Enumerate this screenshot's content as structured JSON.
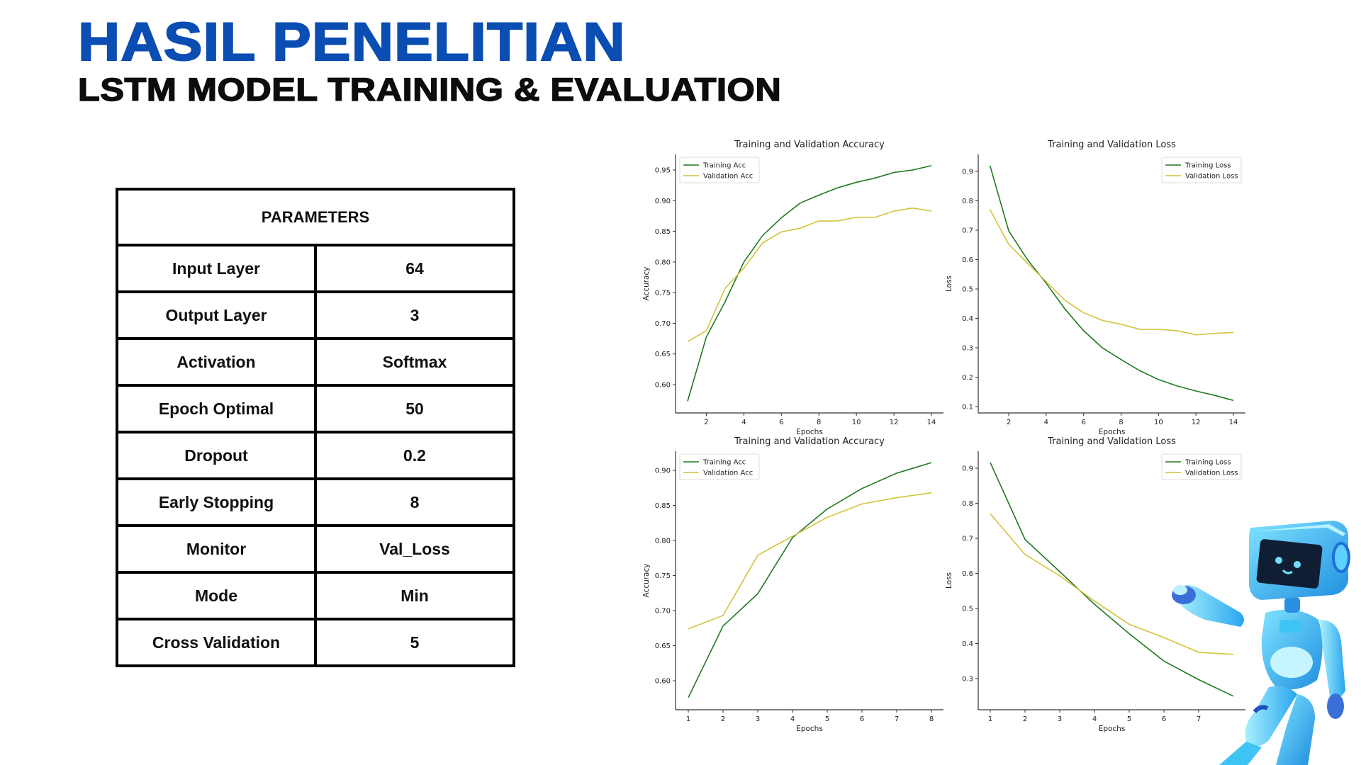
{
  "header": {
    "title": "HASIL PENELITIAN",
    "subtitle": "LSTM MODEL TRAINING & EVALUATION"
  },
  "table": {
    "header": "PARAMETERS",
    "rows": [
      {
        "key": "Input Layer",
        "value": "64"
      },
      {
        "key": "Output Layer",
        "value": "3"
      },
      {
        "key": "Activation",
        "value": "Softmax"
      },
      {
        "key": "Epoch Optimal",
        "value": "50"
      },
      {
        "key": "Dropout",
        "value": "0.2"
      },
      {
        "key": "Early Stopping",
        "value": "8"
      },
      {
        "key": "Monitor",
        "value": "Val_Loss"
      },
      {
        "key": "Mode",
        "value": "Min"
      },
      {
        "key": "Cross Validation",
        "value": "5"
      }
    ]
  },
  "colors": {
    "title_blue": "#0a4db3",
    "training": "#1f7a1f",
    "validation": "#d4c23a",
    "robot_blue": "#3ab8f0"
  },
  "illustration": "robot-icon",
  "chart_data": [
    {
      "type": "line",
      "title": "Training and Validation Accuracy",
      "xlabel": "Epochs",
      "ylabel": "Accuracy",
      "x": [
        1,
        2,
        3,
        4,
        5,
        6,
        7,
        8,
        9,
        10,
        11,
        12,
        13,
        14
      ],
      "xticks": [
        2,
        4,
        6,
        8,
        10,
        12,
        14
      ],
      "xtick_labels": [
        "2",
        "4",
        "6",
        "8",
        "10",
        "12",
        "14"
      ],
      "yticks": [
        0.6,
        0.65,
        0.7,
        0.75,
        0.8,
        0.85,
        0.9,
        0.95
      ],
      "ytick_labels": [
        "0.60",
        "0.65",
        "0.70",
        "0.75",
        "0.80",
        "0.85",
        "0.90",
        "0.95"
      ],
      "legend": "top-left",
      "series": [
        {
          "name": "Training Acc",
          "color": "#1f7a1f",
          "values": [
            0.573,
            0.678,
            0.735,
            0.8,
            0.843,
            0.872,
            0.896,
            0.909,
            0.921,
            0.93,
            0.937,
            0.946,
            0.95,
            0.957
          ]
        },
        {
          "name": "Validation Acc",
          "color": "#d4c23a",
          "values": [
            0.67,
            0.688,
            0.757,
            0.79,
            0.831,
            0.849,
            0.855,
            0.867,
            0.867,
            0.873,
            0.873,
            0.883,
            0.888,
            0.883
          ]
        }
      ]
    },
    {
      "type": "line",
      "title": "Training and Validation Loss",
      "xlabel": "Epochs",
      "ylabel": "Loss",
      "x": [
        1,
        2,
        3,
        4,
        5,
        6,
        7,
        8,
        9,
        10,
        11,
        12,
        13,
        14
      ],
      "xticks": [
        2,
        4,
        6,
        8,
        10,
        12,
        14
      ],
      "xtick_labels": [
        "2",
        "4",
        "6",
        "8",
        "10",
        "12",
        "14"
      ],
      "yticks": [
        0.1,
        0.2,
        0.3,
        0.4,
        0.5,
        0.6,
        0.7,
        0.8,
        0.9
      ],
      "ytick_labels": [
        "0.1",
        "0.2",
        "0.3",
        "0.4",
        "0.5",
        "0.6",
        "0.7",
        "0.8",
        "0.9"
      ],
      "legend": "top-right",
      "series": [
        {
          "name": "Training Loss",
          "color": "#1f7a1f",
          "values": [
            0.92,
            0.698,
            0.6,
            0.52,
            0.432,
            0.358,
            0.3,
            0.26,
            0.222,
            0.192,
            0.17,
            0.153,
            0.138,
            0.121
          ]
        },
        {
          "name": "Validation Loss",
          "color": "#d4c23a",
          "values": [
            0.77,
            0.652,
            0.588,
            0.525,
            0.462,
            0.419,
            0.393,
            0.38,
            0.363,
            0.363,
            0.358,
            0.344,
            0.349,
            0.352
          ]
        }
      ]
    },
    {
      "type": "line",
      "title": "Training and Validation Accuracy",
      "xlabel": "Epochs",
      "ylabel": "Accuracy",
      "x": [
        1,
        2,
        3,
        4,
        5,
        6,
        7,
        8
      ],
      "xticks": [
        1,
        2,
        3,
        4,
        5,
        6,
        7,
        8
      ],
      "xtick_labels": [
        "1",
        "2",
        "3",
        "4",
        "5",
        "6",
        "7",
        "8"
      ],
      "yticks": [
        0.6,
        0.65,
        0.7,
        0.75,
        0.8,
        0.85,
        0.9
      ],
      "ytick_labels": [
        "0.60",
        "0.65",
        "0.70",
        "0.75",
        "0.80",
        "0.85",
        "0.90"
      ],
      "legend": "top-left",
      "series": [
        {
          "name": "Training Acc",
          "color": "#1f7a1f",
          "values": [
            0.576,
            0.678,
            0.724,
            0.804,
            0.845,
            0.874,
            0.896,
            0.911
          ]
        },
        {
          "name": "Validation Acc",
          "color": "#d4c23a",
          "values": [
            0.674,
            0.693,
            0.779,
            0.806,
            0.833,
            0.852,
            0.861,
            0.868
          ]
        }
      ]
    },
    {
      "type": "line",
      "title": "Training and Validation Loss",
      "xlabel": "Epochs",
      "ylabel": "Loss",
      "x": [
        1,
        2,
        3,
        4,
        5,
        6,
        7,
        8
      ],
      "xticks": [
        1,
        2,
        3,
        4,
        5,
        6,
        7
      ],
      "xtick_labels": [
        "1",
        "2",
        "3",
        "4",
        "5",
        "6",
        "7"
      ],
      "yticks": [
        0.3,
        0.4,
        0.5,
        0.6,
        0.7,
        0.8,
        0.9
      ],
      "ytick_labels": [
        "0.3",
        "0.4",
        "0.5",
        "0.6",
        "0.7",
        "0.8",
        "0.9"
      ],
      "legend": "top-right",
      "series": [
        {
          "name": "Training Loss",
          "color": "#1f7a1f",
          "values": [
            0.916,
            0.697,
            0.605,
            0.512,
            0.428,
            0.35,
            0.297,
            0.25
          ]
        },
        {
          "name": "Validation Loss",
          "color": "#d4c23a",
          "values": [
            0.77,
            0.654,
            0.593,
            0.521,
            0.455,
            0.417,
            0.375,
            0.369
          ]
        }
      ]
    }
  ]
}
